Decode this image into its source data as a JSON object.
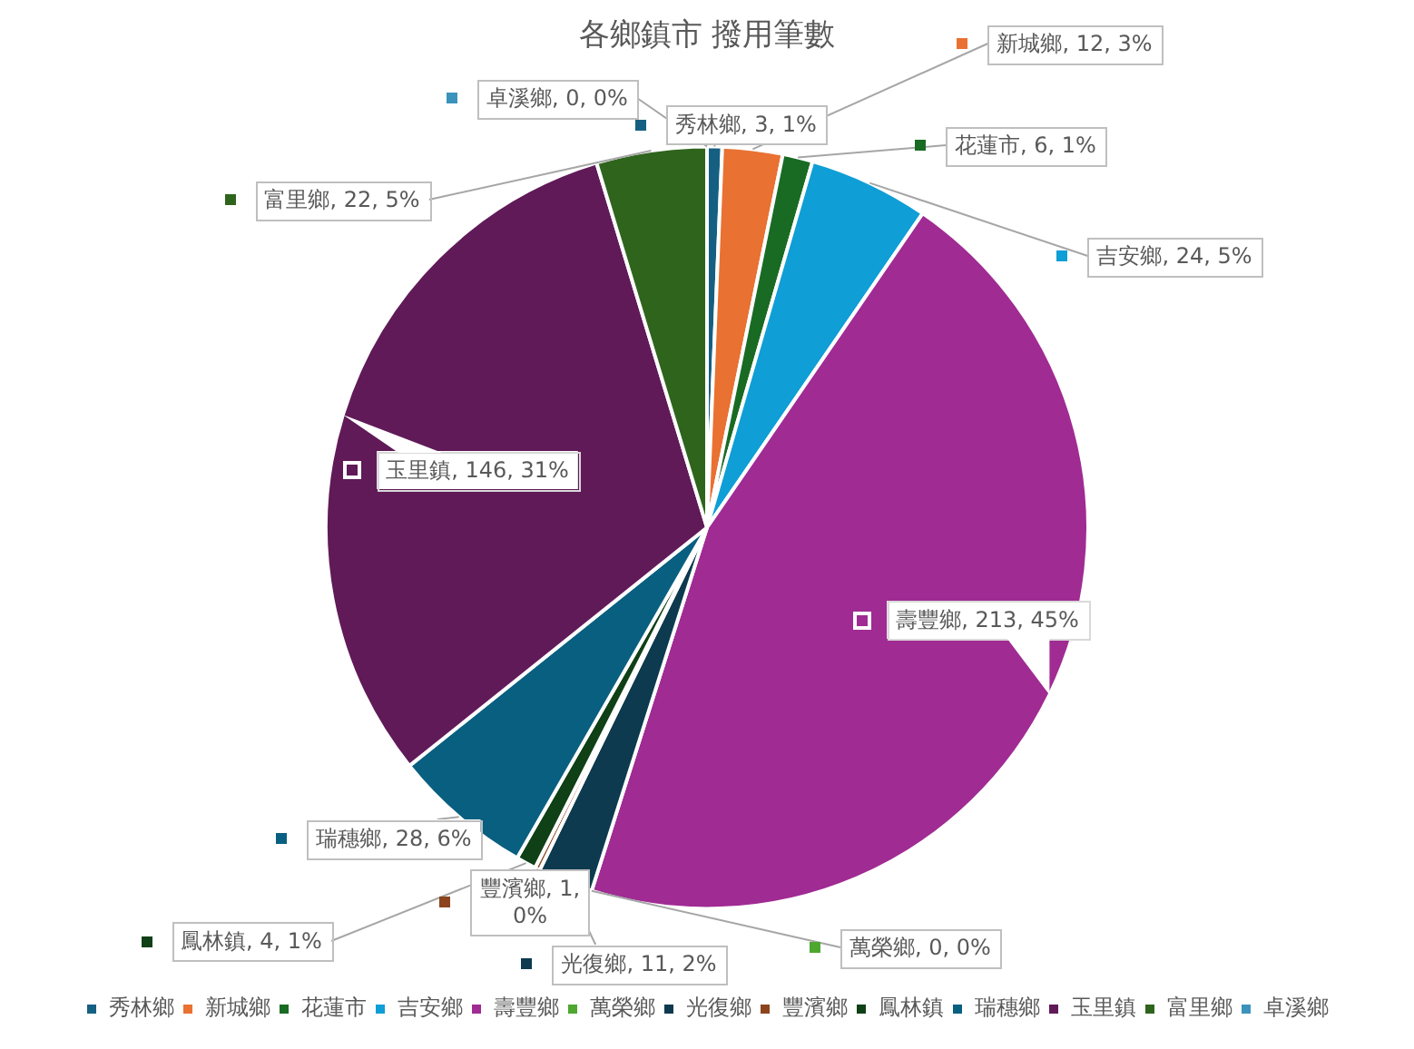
{
  "chart_data": {
    "type": "pie",
    "title": "各鄉鎮市 撥用筆數",
    "categories": [
      "秀林鄉",
      "新城鄉",
      "花蓮市",
      "吉安鄉",
      "壽豐鄉",
      "萬榮鄉",
      "光復鄉",
      "豐濱鄉",
      "鳳林鎮",
      "瑞穗鄉",
      "玉里鎮",
      "富里鄉",
      "卓溪鄉"
    ],
    "values": [
      3,
      12,
      6,
      24,
      213,
      0,
      11,
      1,
      4,
      28,
      146,
      22,
      0
    ],
    "colors": [
      "#156082",
      "#e97132",
      "#196b24",
      "#0f9ed5",
      "#a02b93",
      "#4ea72e",
      "#0d3a4e",
      "#8c441e",
      "#0f4016",
      "#095f80",
      "#601a58",
      "#2f641c",
      "#3b93bb"
    ],
    "value_labels": [
      "秀林鄉, 3, 1%",
      "新城鄉, 12, 3%",
      "花蓮市, 6, 1%",
      "吉安鄉, 24, 5%",
      "壽豐鄉, 213, 45%",
      "萬榮鄉, 0, 0%",
      "光復鄉, 11, 2%",
      "豐濱鄉, 1, 0%",
      "鳳林鎮, 4, 1%",
      "瑞穗鄉, 28, 6%",
      "玉里鎮, 146, 31%",
      "富里鄉, 22, 5%",
      "卓溪鄉, 0, 0%"
    ],
    "legend": "bottom"
  }
}
